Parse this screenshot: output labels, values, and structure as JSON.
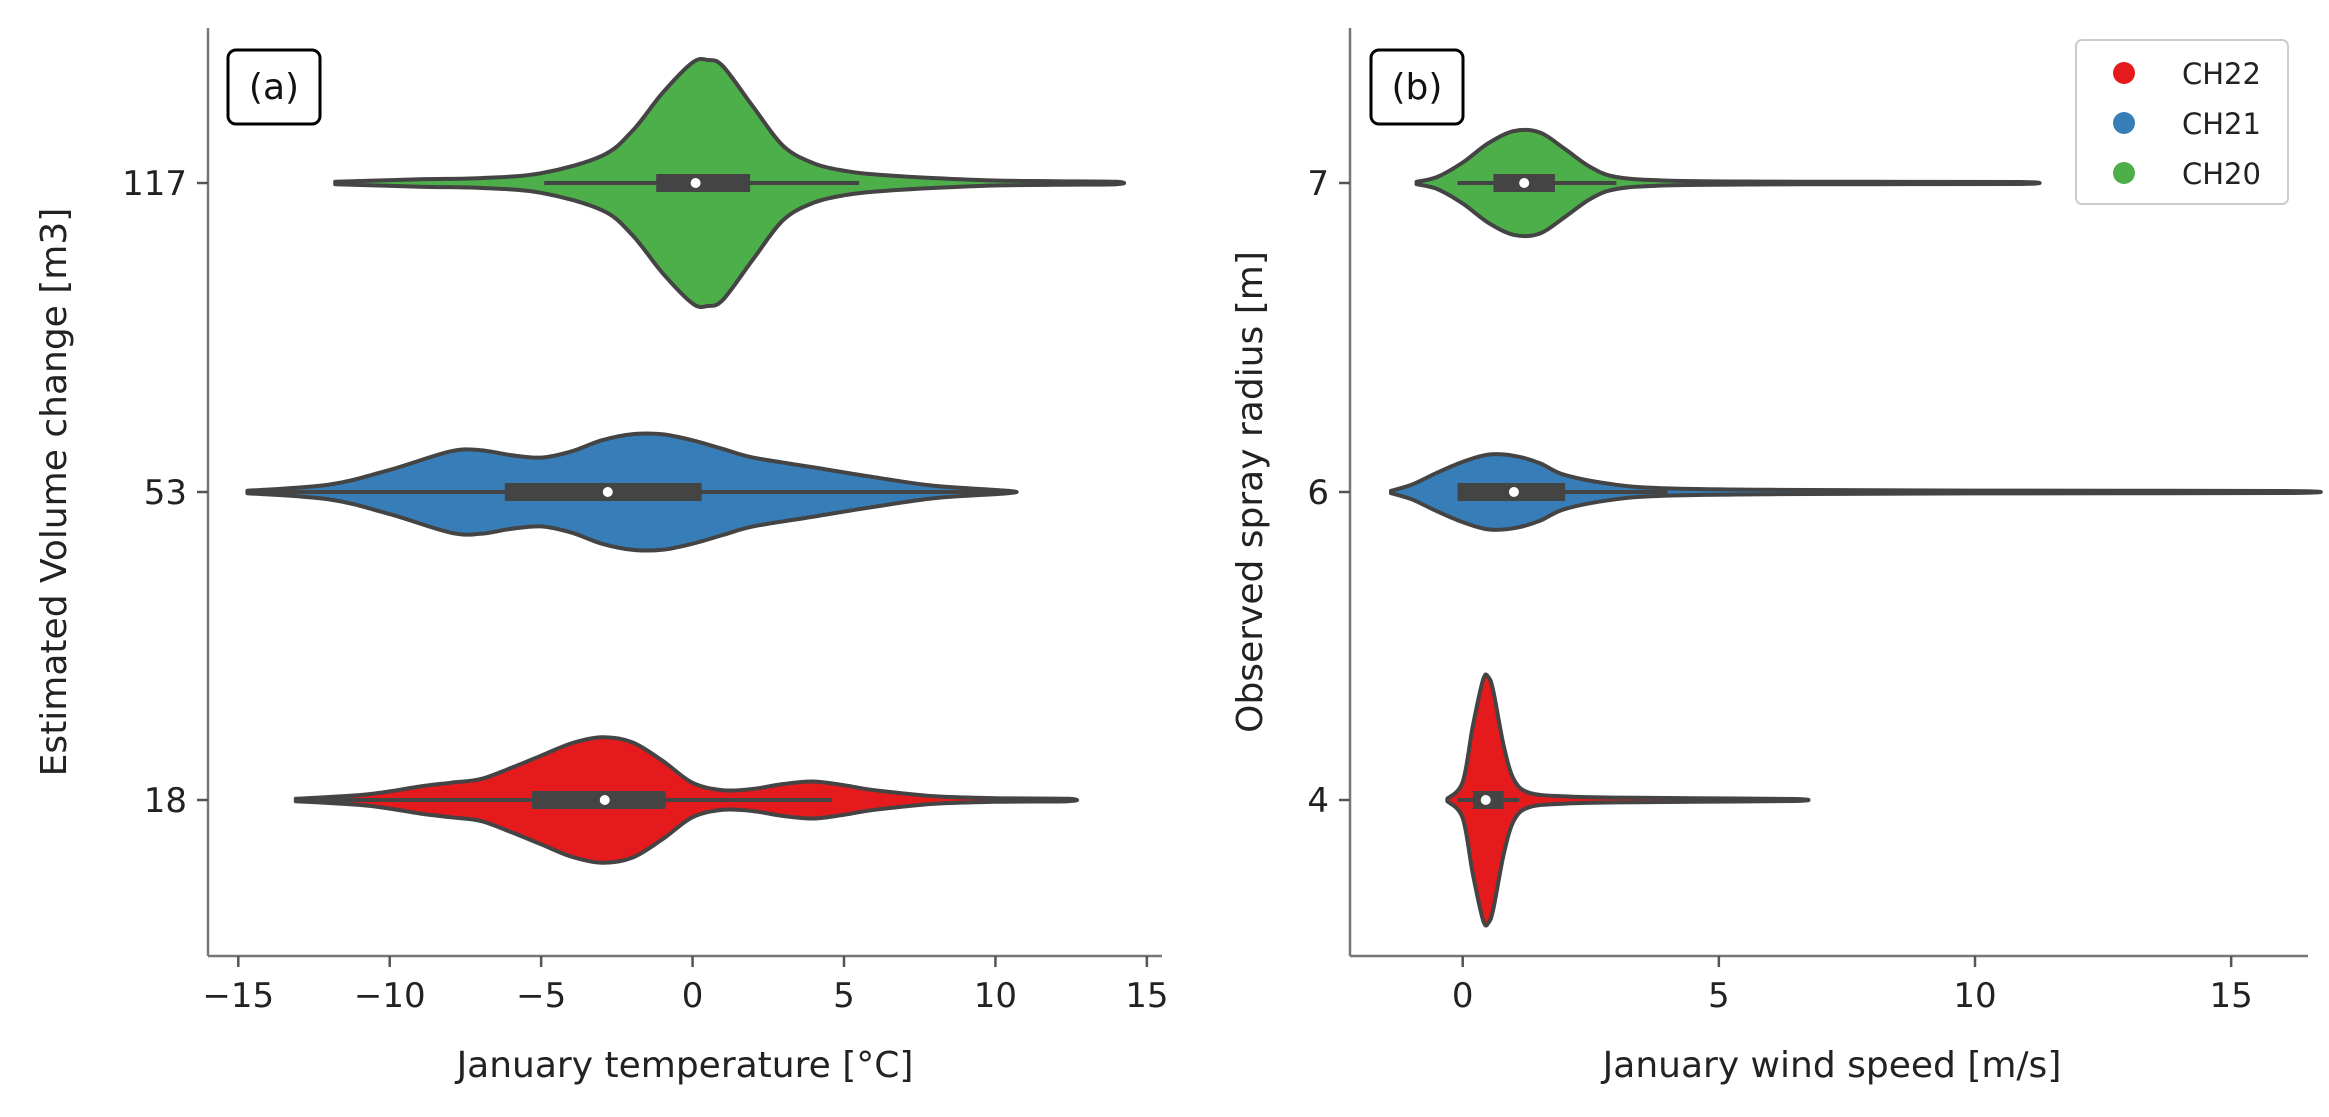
{
  "chart_data": [
    {
      "type": "violin",
      "panel": "(a)",
      "orientation": "horizontal",
      "xlabel": "January temperature [°C]",
      "ylabel": "Estimated Volume change [m3]",
      "xlim": [
        -16,
        15.5
      ],
      "xticks": [
        -15,
        -10,
        -5,
        0,
        5,
        10,
        15
      ],
      "xtick_labels": [
        "−15",
        "−10",
        "−5",
        "0",
        "5",
        "10",
        "15"
      ],
      "ytick_labels": [
        "117",
        "53",
        "18"
      ],
      "grid": false,
      "series": [
        {
          "name": "CH20",
          "category": "117",
          "color": "#4daf4a",
          "min": -11.8,
          "max": 14.0,
          "q1": -1.2,
          "q3": 1.9,
          "median": 0.1,
          "whisker_low": -4.9,
          "whisker_high": 5.5,
          "density": [
            [
              -11.8,
              0.01
            ],
            [
              -9,
              0.03
            ],
            [
              -7,
              0.04
            ],
            [
              -5,
              0.08
            ],
            [
              -3,
              0.22
            ],
            [
              -2,
              0.42
            ],
            [
              -1,
              0.73
            ],
            [
              0,
              0.98
            ],
            [
              0.5,
              1.0
            ],
            [
              1,
              0.95
            ],
            [
              2,
              0.62
            ],
            [
              3,
              0.3
            ],
            [
              4,
              0.16
            ],
            [
              5,
              0.1
            ],
            [
              6,
              0.07
            ],
            [
              8,
              0.04
            ],
            [
              10,
              0.02
            ],
            [
              12,
              0.015
            ],
            [
              14,
              0.01
            ]
          ]
        },
        {
          "name": "CH21",
          "category": "53",
          "color": "#377eb8",
          "min": -14.7,
          "max": 10.4,
          "q1": -6.2,
          "q3": 0.3,
          "median": -2.8,
          "whisker_low": -14.7,
          "whisker_high": 10.4,
          "density": [
            [
              -14.7,
              0.01
            ],
            [
              -12,
              0.06
            ],
            [
              -10,
              0.18
            ],
            [
              -8,
              0.33
            ],
            [
              -7,
              0.34
            ],
            [
              -6,
              0.3
            ],
            [
              -5,
              0.28
            ],
            [
              -4,
              0.33
            ],
            [
              -3,
              0.42
            ],
            [
              -2,
              0.47
            ],
            [
              -1,
              0.47
            ],
            [
              0,
              0.42
            ],
            [
              1,
              0.35
            ],
            [
              2,
              0.28
            ],
            [
              4,
              0.2
            ],
            [
              6,
              0.12
            ],
            [
              8,
              0.05
            ],
            [
              10.4,
              0.01
            ]
          ]
        },
        {
          "name": "CH22",
          "category": "18",
          "color": "#e41a1c",
          "min": -13.1,
          "max": 12.4,
          "q1": -5.3,
          "q3": -0.9,
          "median": -2.9,
          "whisker_low": -13.1,
          "whisker_high": 4.6,
          "density": [
            [
              -13.1,
              0.01
            ],
            [
              -11,
              0.04
            ],
            [
              -10,
              0.07
            ],
            [
              -9,
              0.11
            ],
            [
              -8,
              0.14
            ],
            [
              -7,
              0.17
            ],
            [
              -6,
              0.26
            ],
            [
              -5,
              0.36
            ],
            [
              -4,
              0.46
            ],
            [
              -3,
              0.51
            ],
            [
              -2,
              0.47
            ],
            [
              -1,
              0.32
            ],
            [
              0,
              0.14
            ],
            [
              1,
              0.08
            ],
            [
              2,
              0.09
            ],
            [
              3,
              0.13
            ],
            [
              4,
              0.15
            ],
            [
              5,
              0.12
            ],
            [
              6,
              0.08
            ],
            [
              8,
              0.03
            ],
            [
              10,
              0.015
            ],
            [
              12.4,
              0.01
            ]
          ]
        }
      ]
    },
    {
      "type": "violin",
      "panel": "(b)",
      "orientation": "horizontal",
      "xlabel": "January wind speed [m/s]",
      "ylabel": "Observed spray radius [m]",
      "xlim": [
        -2.2,
        16.5
      ],
      "xticks": [
        0,
        5,
        10,
        15
      ],
      "xtick_labels": [
        "0",
        "5",
        "10",
        "15"
      ],
      "ytick_labels": [
        "7",
        "6",
        "4"
      ],
      "grid": false,
      "legend_position": "top-right",
      "series": [
        {
          "name": "CH20",
          "category": "7",
          "color": "#4daf4a",
          "min": -0.9,
          "max": 10.9,
          "q1": 0.6,
          "q3": 1.8,
          "median": 1.2,
          "whisker_low": -0.1,
          "whisker_high": 3.0,
          "density": [
            [
              -0.9,
              0.01
            ],
            [
              -0.5,
              0.05
            ],
            [
              0,
              0.17
            ],
            [
              0.5,
              0.33
            ],
            [
              1,
              0.43
            ],
            [
              1.5,
              0.42
            ],
            [
              2,
              0.28
            ],
            [
              2.5,
              0.13
            ],
            [
              3,
              0.05
            ],
            [
              4,
              0.02
            ],
            [
              6,
              0.012
            ],
            [
              8,
              0.01
            ],
            [
              10.9,
              0.008
            ]
          ]
        },
        {
          "name": "CH21",
          "category": "6",
          "color": "#377eb8",
          "min": -1.4,
          "max": 16.0,
          "q1": -0.1,
          "q3": 2.0,
          "median": 1.0,
          "whisker_low": -0.1,
          "whisker_high": 4.0,
          "density": [
            [
              -1.4,
              0.01
            ],
            [
              -1,
              0.06
            ],
            [
              -0.5,
              0.16
            ],
            [
              0,
              0.25
            ],
            [
              0.5,
              0.31
            ],
            [
              1,
              0.3
            ],
            [
              1.5,
              0.24
            ],
            [
              2,
              0.14
            ],
            [
              3,
              0.06
            ],
            [
              4,
              0.03
            ],
            [
              6,
              0.018
            ],
            [
              10,
              0.012
            ],
            [
              16,
              0.008
            ]
          ]
        },
        {
          "name": "CH22",
          "category": "4",
          "color": "#e41a1c",
          "min": -0.3,
          "max": 6.5,
          "q1": 0.2,
          "q3": 0.8,
          "median": 0.45,
          "whisker_low": -0.1,
          "whisker_high": 1.1,
          "density": [
            [
              -0.3,
              0.01
            ],
            [
              0,
              0.15
            ],
            [
              0.2,
              0.62
            ],
            [
              0.4,
              1.0
            ],
            [
              0.5,
              1.02
            ],
            [
              0.6,
              0.9
            ],
            [
              0.8,
              0.45
            ],
            [
              1,
              0.17
            ],
            [
              1.3,
              0.06
            ],
            [
              2,
              0.03
            ],
            [
              3,
              0.02
            ],
            [
              4.5,
              0.015
            ],
            [
              6.5,
              0.008
            ]
          ]
        }
      ]
    }
  ],
  "legend": {
    "entries": [
      {
        "label": "CH22",
        "color": "#e41a1c"
      },
      {
        "label": "CH21",
        "color": "#377eb8"
      },
      {
        "label": "CH20",
        "color": "#4daf4a"
      }
    ]
  }
}
